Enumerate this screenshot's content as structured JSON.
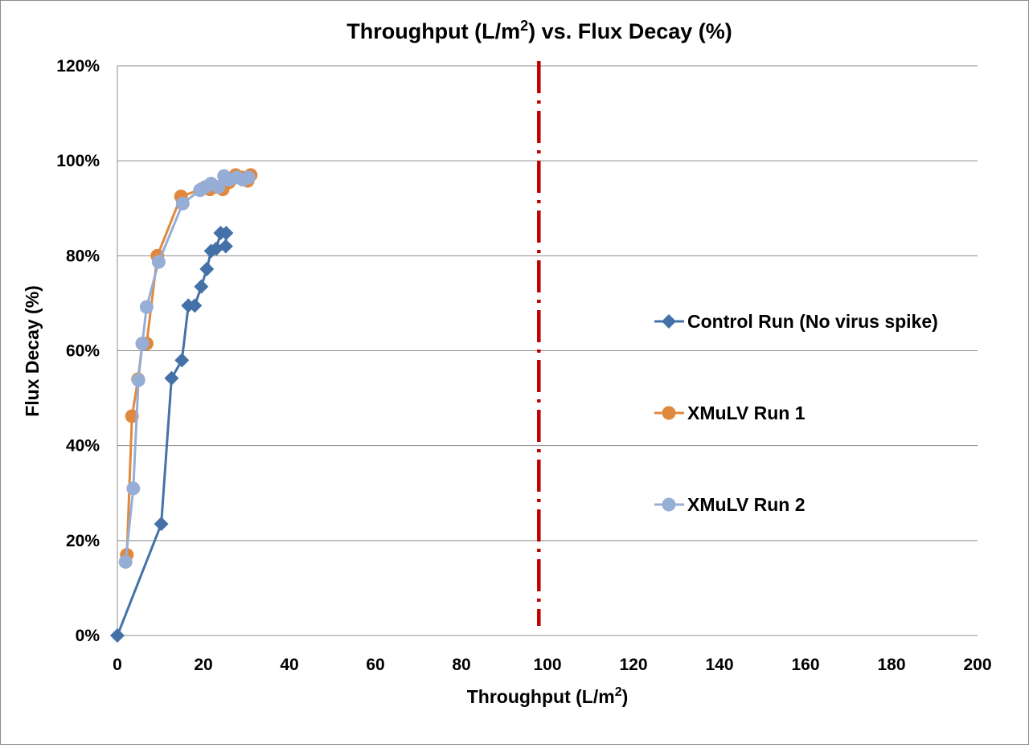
{
  "chart_data": {
    "type": "scatter",
    "title": {
      "prefix": "Throughput (L/m",
      "sup": "2",
      "suffix": ") vs. Flux Decay (%)"
    },
    "xlabel": {
      "prefix": "Throughput (L/m",
      "sup": "2",
      "suffix": ")"
    },
    "ylabel": "Flux Decay (%)",
    "xlim": [
      0,
      200
    ],
    "ylim": [
      0,
      1.2
    ],
    "x_ticks": [
      "0",
      "20",
      "40",
      "60",
      "80",
      "100",
      "120",
      "140",
      "160",
      "180",
      "200"
    ],
    "y_ticks": [
      "0%",
      "20%",
      "40%",
      "60%",
      "80%",
      "100%",
      "120%"
    ],
    "grid": "horizontal",
    "legend_position": "right",
    "series": [
      {
        "name": "Control Run (No virus spike)",
        "color": "#4472a8",
        "marker": "diamond",
        "x": [
          0,
          10.2,
          12.6,
          15,
          16.5,
          18,
          19.5,
          20.8,
          21.8,
          23,
          24,
          25.3,
          25.2
        ],
        "y": [
          0,
          0.235,
          0.542,
          0.58,
          0.695,
          0.695,
          0.735,
          0.772,
          0.81,
          0.815,
          0.848,
          0.848,
          0.82
        ]
      },
      {
        "name": "XMuLV Run 1",
        "color": "#e0883e",
        "marker": "circle",
        "x": [
          2.2,
          3.4,
          4.8,
          5.8,
          6.8,
          9.3,
          14.8,
          19.5,
          21.5,
          23,
          24.5,
          26,
          27.5,
          29,
          30.3,
          31
        ],
        "y": [
          0.17,
          0.462,
          0.54,
          0.615,
          0.615,
          0.8,
          0.925,
          0.94,
          0.94,
          0.945,
          0.94,
          0.955,
          0.97,
          0.965,
          0.958,
          0.97
        ]
      },
      {
        "name": "XMuLV Run 2",
        "color": "#96aed6",
        "marker": "circle",
        "x": [
          1.9,
          3.7,
          4.9,
          5.8,
          6.8,
          9.6,
          15.2,
          19.2,
          20.5,
          21.8,
          23.5,
          24.8,
          26,
          27.8,
          29.2,
          30.5
        ],
        "y": [
          0.155,
          0.31,
          0.538,
          0.615,
          0.692,
          0.787,
          0.91,
          0.938,
          0.945,
          0.952,
          0.945,
          0.968,
          0.96,
          0.965,
          0.96,
          0.965
        ]
      }
    ],
    "reference_line": {
      "x": 98,
      "color": "#c00000",
      "style": "dash-dot"
    }
  }
}
